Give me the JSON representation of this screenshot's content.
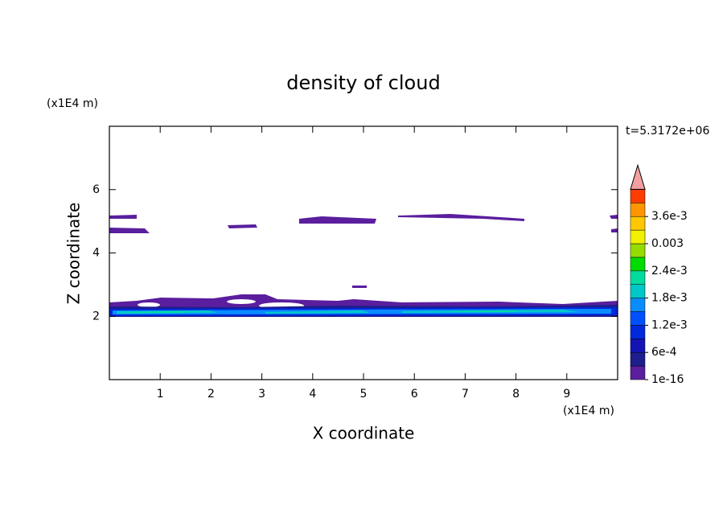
{
  "chart_data": {
    "type": "contour",
    "title": "density of cloud",
    "x_label": "X coordinate",
    "y_label": "Z coordinate",
    "x_unit": "(x1E4 m)",
    "y_unit": "(x1E4 m)",
    "annotation": "t=5.3172e+06",
    "xlim": [
      0,
      10
    ],
    "ylim": [
      0,
      8
    ],
    "xticks": [
      1,
      2,
      3,
      4,
      5,
      6,
      7,
      8,
      9
    ],
    "yticks": [
      2,
      4,
      6
    ],
    "colorbar": {
      "clim": [
        1e-16,
        0.0042
      ],
      "colors": [
        "#5a1e9e",
        "#1e1e8c",
        "#1414b4",
        "#0028dc",
        "#0050ff",
        "#0a8cff",
        "#00c8c8",
        "#00dca0",
        "#00dc00",
        "#96dc00",
        "#f0f000",
        "#ffc800",
        "#ff9600",
        "#ff3c00"
      ],
      "extend_color": "#f4a0a0",
      "ticks": [
        {
          "value": 1e-16,
          "label": "1e-16"
        },
        {
          "value": 0.0006,
          "label": "6e-4"
        },
        {
          "value": 0.0012,
          "label": "1.2e-3"
        },
        {
          "value": 0.0018,
          "label": "1.8e-3"
        },
        {
          "value": 0.0024,
          "label": "2.4e-3"
        },
        0.003,
        {
          "value": 0.0036,
          "label": "3.6e-3"
        }
      ]
    }
  }
}
